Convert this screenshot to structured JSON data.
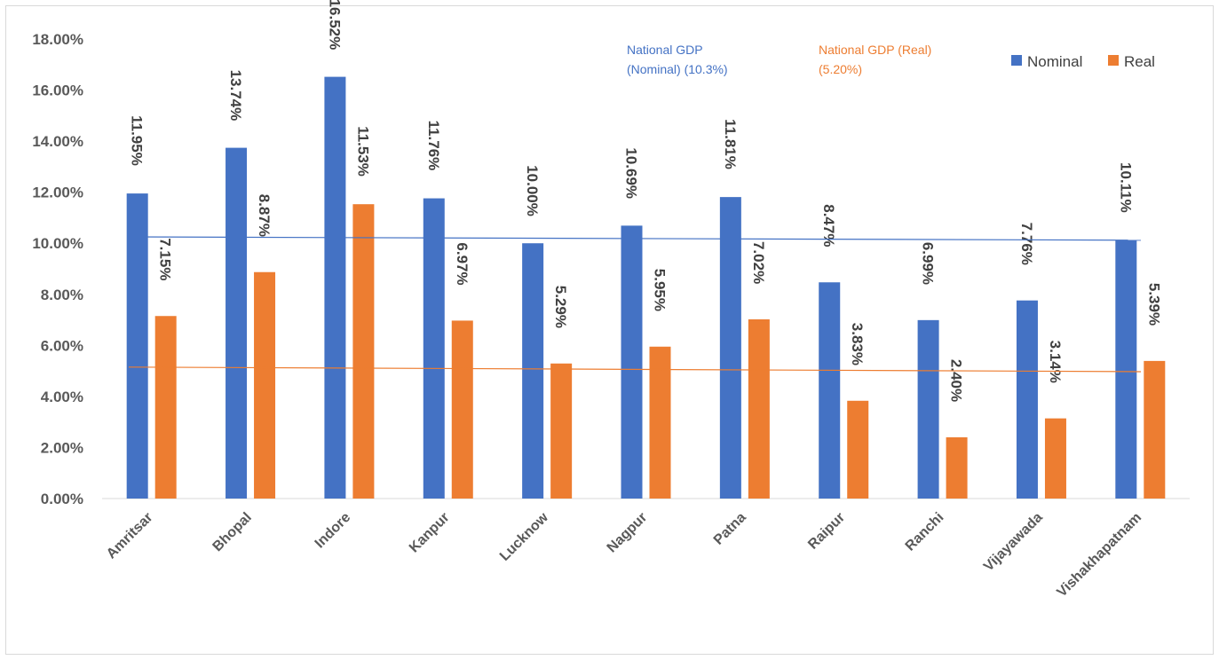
{
  "chart_data": {
    "type": "bar",
    "categories": [
      "Amritsar",
      "Bhopal",
      "Indore",
      "Kanpur",
      "Lucknow",
      "Nagpur",
      "Patna",
      "Raipur",
      "Ranchi",
      "Vijayawada",
      "Vishakhapatnam"
    ],
    "series": [
      {
        "name": "Nominal",
        "color": "#4472C4",
        "values": [
          11.95,
          13.74,
          16.52,
          11.76,
          10.0,
          10.69,
          11.81,
          8.47,
          6.99,
          7.76,
          10.11
        ],
        "labels": [
          "11.95%",
          "13.74%",
          "16.52%",
          "11.76%",
          "10.00%",
          "10.69%",
          "11.81%",
          "8.47%",
          "6.99%",
          "7.76%",
          "10.11%"
        ]
      },
      {
        "name": "Real",
        "color": "#ED7D31",
        "values": [
          7.15,
          8.87,
          11.53,
          6.97,
          5.29,
          5.95,
          7.02,
          3.83,
          2.4,
          3.14,
          5.39
        ],
        "labels": [
          "7.15%",
          "8.87%",
          "11.53%",
          "6.97%",
          "5.29%",
          "5.95%",
          "7.02%",
          "3.83%",
          "2.40%",
          "3.14%",
          "5.39%"
        ]
      }
    ],
    "reference_lines": [
      {
        "label_lines": [
          "National GDP",
          "(Nominal) (10.3%)"
        ],
        "start": 10.25,
        "end": 10.12,
        "color": "#4472C4"
      },
      {
        "label_lines": [
          "National GDP (Real)",
          "(5.20%)"
        ],
        "start": 5.15,
        "end": 4.97,
        "color": "#ED7D31"
      }
    ],
    "ylim": [
      0,
      18
    ],
    "yticks": [
      0,
      2,
      4,
      6,
      8,
      10,
      12,
      14,
      16,
      18
    ],
    "ytick_labels": [
      "0.00%",
      "2.00%",
      "4.00%",
      "6.00%",
      "8.00%",
      "10.00%",
      "12.00%",
      "14.00%",
      "16.00%",
      "18.00%"
    ],
    "grid": false,
    "legend_position": "top-right"
  }
}
